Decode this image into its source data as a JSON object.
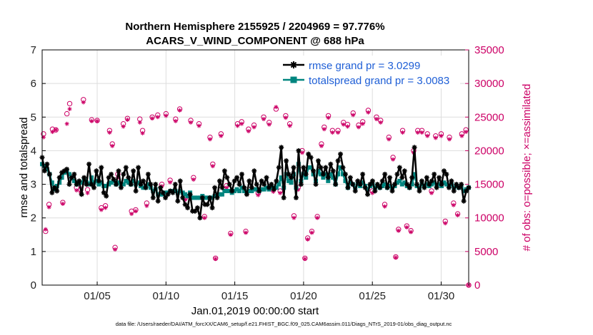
{
  "chart_data": {
    "type": "line",
    "title": "Northern Hemisphere 2155925 / 2204969 = 97.776%",
    "subtitle": "ACARS_V_WIND_COMPONENT @ 688 hPa",
    "xlabel": "Jan.01,2019 00:00:00 start",
    "ylabel": "rmse and totalspread",
    "ylabel_right": "# of obs: o=possible; ×=assimilated",
    "x_ticks": [
      "01/05",
      "01/10",
      "01/15",
      "01/20",
      "01/25",
      "01/30"
    ],
    "x_tick_days": [
      5,
      10,
      15,
      20,
      25,
      30
    ],
    "xlim": [
      1,
      32
    ],
    "ylim": [
      0,
      7
    ],
    "y_ticks": [
      0,
      1,
      2,
      3,
      4,
      5,
      6,
      7
    ],
    "ylim_right": [
      0,
      35000
    ],
    "y_ticks_right": [
      0,
      5000,
      10000,
      15000,
      20000,
      25000,
      30000,
      35000
    ],
    "grid": true,
    "legend_position": "top-right",
    "footer": "data file: /Users/raeder/DAI/ATM_forcXX/CAM6_setup/f.e21.FHIST_BGC.f09_025.CAM6assim.011/Diags_NTrS_2019-01/obs_diag_output.nc",
    "colors": {
      "rmse": "#000000",
      "spread": "#00857f",
      "obs": "#cc0066",
      "legend_text": "#1f5fd6",
      "grid": "#dddddd"
    },
    "series": [
      {
        "name": "rmse grand pr = 3.0299",
        "role": "rmse",
        "values": [
          3.8,
          3.4,
          3.6,
          3.3,
          2.75,
          2.9,
          2.8,
          3.2,
          3.35,
          3.4,
          3.45,
          3.0,
          3.2,
          3.3,
          3.0,
          3.1,
          2.7,
          3.2,
          3.0,
          3.6,
          3.0,
          2.9,
          3.4,
          3.1,
          3.5,
          2.75,
          2.65,
          3.2,
          3.3,
          3.15,
          3.0,
          3.4,
          2.9,
          3.3,
          3.5,
          3.2,
          3.0,
          3.4,
          2.8,
          3.5,
          3.0,
          3.1,
          2.9,
          3.3,
          3.0,
          2.6,
          3.0,
          2.5,
          2.9,
          2.75,
          2.6,
          2.7,
          2.8,
          2.75,
          3.0,
          2.5,
          3.1,
          2.6,
          2.4,
          2.3,
          2.7,
          2.2,
          2.2,
          2.3,
          2.0,
          2.6,
          2.4,
          2.4,
          2.6,
          2.3,
          2.9,
          2.6,
          3.1,
          2.9,
          3.4,
          3.2,
          3.0,
          2.8,
          3.1,
          3.2,
          3.0,
          3.3,
          2.9,
          2.7,
          3.1,
          2.9,
          3.4,
          3.0,
          2.8,
          3.1,
          3.0,
          3.2,
          2.9,
          3.0,
          2.85,
          3.1,
          3.5,
          4.1,
          2.6,
          3.7,
          3.3,
          3.2,
          3.5,
          2.6,
          4.0,
          3.0,
          3.5,
          3.3,
          3.9,
          3.8,
          3.4,
          3.0,
          3.7,
          3.5,
          3.3,
          3.5,
          3.2,
          3.6,
          3.4,
          3.0,
          3.7,
          3.9,
          3.5,
          3.3,
          2.9,
          3.2,
          3.0,
          2.8,
          3.1,
          3.0,
          3.3,
          2.9,
          2.7,
          3.0,
          3.1,
          2.8,
          3.0,
          2.9,
          3.1,
          3.3,
          2.9,
          3.2,
          2.8,
          3.0,
          3.3,
          3.5,
          3.2,
          3.4,
          3.0,
          2.9,
          3.2,
          4.1,
          3.0,
          2.8,
          3.1,
          2.9,
          3.2,
          3.0,
          3.1,
          3.3,
          2.9,
          3.2,
          3.0,
          3.4,
          3.3,
          2.9,
          3.1,
          2.8,
          3.0,
          2.9,
          3.0,
          2.5,
          2.8,
          2.9
        ]
      },
      {
        "name": "totalspread grand pr = 3.0083",
        "role": "spread",
        "values": [
          3.6,
          3.55,
          3.45,
          3.3,
          3.05,
          2.85,
          2.95,
          3.05,
          3.2,
          3.35,
          3.4,
          3.3,
          3.2,
          3.1,
          3.0,
          3.05,
          3.05,
          3.15,
          3.05,
          3.0,
          3.2,
          3.05,
          3.1,
          3.0,
          3.05,
          2.95,
          2.95,
          3.0,
          3.05,
          3.1,
          3.0,
          3.05,
          3.0,
          3.0,
          3.1,
          3.05,
          3.0,
          3.1,
          3.0,
          3.05,
          2.95,
          2.9,
          2.9,
          3.0,
          2.9,
          2.8,
          2.85,
          2.7,
          2.7,
          2.7,
          2.75,
          2.75,
          2.8,
          2.8,
          2.8,
          2.75,
          2.8,
          2.75,
          2.7,
          2.65,
          2.75,
          2.6,
          2.6,
          2.6,
          2.6,
          2.65,
          2.6,
          2.6,
          2.6,
          2.6,
          2.65,
          2.65,
          2.7,
          2.7,
          2.8,
          2.8,
          2.8,
          2.75,
          2.8,
          2.85,
          2.8,
          2.9,
          2.8,
          2.75,
          2.8,
          2.8,
          2.85,
          2.85,
          2.8,
          2.85,
          2.85,
          2.9,
          2.85,
          2.9,
          2.9,
          2.9,
          3.0,
          3.2,
          2.9,
          3.3,
          3.1,
          3.05,
          3.3,
          2.9,
          3.6,
          3.1,
          3.3,
          3.2,
          3.5,
          3.5,
          3.3,
          3.1,
          3.4,
          3.3,
          3.2,
          3.3,
          3.1,
          3.3,
          3.2,
          3.0,
          3.3,
          3.5,
          3.3,
          3.1,
          2.9,
          3.05,
          3.0,
          2.9,
          3.0,
          2.95,
          3.05,
          2.95,
          2.85,
          2.95,
          3.0,
          2.9,
          2.95,
          2.9,
          2.95,
          3.0,
          2.9,
          2.95,
          2.9,
          2.95,
          3.05,
          3.1,
          3.0,
          3.05,
          2.95,
          2.9,
          3.0,
          3.3,
          2.95,
          2.9,
          3.0,
          2.95,
          3.0,
          2.95,
          3.0,
          3.05,
          2.95,
          3.0,
          2.95,
          3.05,
          3.0,
          2.95,
          3.0,
          2.9,
          2.95,
          2.9,
          2.95,
          2.8,
          2.85,
          2.9
        ]
      }
    ],
    "obs_points": [
      {
        "day": 1.1,
        "possible": 22500,
        "assimilated": 22000
      },
      {
        "day": 1.25,
        "possible": 8000,
        "assimilated": 8300
      },
      {
        "day": 1.5,
        "possible": 12000,
        "assimilated": 11600
      },
      {
        "day": 1.75,
        "possible": 23200,
        "assimilated": 22800
      },
      {
        "day": 2.0,
        "possible": 23100,
        "assimilated": 23100
      },
      {
        "day": 2.5,
        "possible": 12300,
        "assimilated": 12100
      },
      {
        "day": 2.8,
        "possible": 25500,
        "assimilated": 24000
      },
      {
        "day": 3.0,
        "possible": 27000,
        "assimilated": 26200
      },
      {
        "day": 3.5,
        "possible": 14500,
        "assimilated": 14100
      },
      {
        "day": 3.8,
        "possible": 14200,
        "assimilated": 13800
      },
      {
        "day": 4.0,
        "possible": 27600,
        "assimilated": 27200
      },
      {
        "day": 4.3,
        "possible": 14200,
        "assimilated": 13700
      },
      {
        "day": 4.6,
        "possible": 24600,
        "assimilated": 24400
      },
      {
        "day": 5.0,
        "possible": 24500,
        "assimilated": 24400
      },
      {
        "day": 5.3,
        "possible": 11500,
        "assimilated": 11200
      },
      {
        "day": 5.6,
        "possible": 11800,
        "assimilated": 11500
      },
      {
        "day": 5.9,
        "possible": 23000,
        "assimilated": 22700
      },
      {
        "day": 6.1,
        "possible": 21000,
        "assimilated": 20700
      },
      {
        "day": 6.3,
        "possible": 5600,
        "assimilated": 5300
      },
      {
        "day": 6.5,
        "possible": 16500,
        "assimilated": 16000
      },
      {
        "day": 6.9,
        "possible": 24000,
        "assimilated": 23600
      },
      {
        "day": 7.2,
        "possible": 24800,
        "assimilated": 24600
      },
      {
        "day": 7.5,
        "possible": 11000,
        "assimilated": 10600
      },
      {
        "day": 7.8,
        "possible": 11200,
        "assimilated": 11000
      },
      {
        "day": 8.1,
        "possible": 24700,
        "assimilated": 24200
      },
      {
        "day": 8.3,
        "possible": 23000,
        "assimilated": 22600
      },
      {
        "day": 8.6,
        "possible": 12200,
        "assimilated": 11800
      },
      {
        "day": 9.0,
        "possible": 25000,
        "assimilated": 24800
      },
      {
        "day": 9.4,
        "possible": 25300,
        "assimilated": 25000
      },
      {
        "day": 9.7,
        "possible": 15000,
        "assimilated": 14700
      },
      {
        "day": 10.0,
        "possible": 25500,
        "assimilated": 25200
      },
      {
        "day": 10.3,
        "possible": 15600,
        "assimilated": 15300
      },
      {
        "day": 10.7,
        "possible": 24700,
        "assimilated": 24400
      },
      {
        "day": 11.0,
        "possible": 26200,
        "assimilated": 26000
      },
      {
        "day": 11.4,
        "possible": 13000,
        "assimilated": 12700
      },
      {
        "day": 11.8,
        "possible": 24500,
        "assimilated": 24200
      },
      {
        "day": 12.0,
        "possible": 16000,
        "assimilated": 15700
      },
      {
        "day": 12.4,
        "possible": 24000,
        "assimilated": 23700
      },
      {
        "day": 12.8,
        "possible": 10200,
        "assimilated": 10000
      },
      {
        "day": 13.2,
        "possible": 22000,
        "assimilated": 21700
      },
      {
        "day": 13.4,
        "possible": 18000,
        "assimilated": 17700
      },
      {
        "day": 13.6,
        "possible": 4000,
        "assimilated": 3900
      },
      {
        "day": 14.0,
        "possible": 22500,
        "assimilated": 22200
      },
      {
        "day": 14.4,
        "possible": 14800,
        "assimilated": 14500
      },
      {
        "day": 14.7,
        "possible": 7700,
        "assimilated": 7500
      },
      {
        "day": 15.2,
        "possible": 24000,
        "assimilated": 23700
      },
      {
        "day": 15.5,
        "possible": 24300,
        "assimilated": 24000
      },
      {
        "day": 15.8,
        "possible": 8000,
        "assimilated": 7800
      },
      {
        "day": 16.0,
        "possible": 23200,
        "assimilated": 22900
      },
      {
        "day": 16.4,
        "possible": 23800,
        "assimilated": 23500
      },
      {
        "day": 16.7,
        "possible": 13700,
        "assimilated": 13400
      },
      {
        "day": 17.1,
        "possible": 25000,
        "assimilated": 24700
      },
      {
        "day": 17.5,
        "possible": 24200,
        "assimilated": 23900
      },
      {
        "day": 17.8,
        "possible": 14200,
        "assimilated": 13900
      },
      {
        "day": 18.0,
        "possible": 26200,
        "assimilated": 26500
      },
      {
        "day": 18.3,
        "possible": 14000,
        "assimilated": 13700
      },
      {
        "day": 18.7,
        "possible": 25200,
        "assimilated": 24900
      },
      {
        "day": 19.0,
        "possible": 24000,
        "assimilated": 23700
      },
      {
        "day": 19.3,
        "possible": 10300,
        "assimilated": 10000
      },
      {
        "day": 19.6,
        "possible": 14500,
        "assimilated": 14200
      },
      {
        "day": 19.9,
        "possible": 20000,
        "assimilated": 19700
      },
      {
        "day": 20.1,
        "possible": 4000,
        "assimilated": 3900
      },
      {
        "day": 20.3,
        "possible": 7000,
        "assimilated": 6800
      },
      {
        "day": 20.6,
        "possible": 8000,
        "assimilated": 7800
      },
      {
        "day": 21.0,
        "possible": 10200,
        "assimilated": 10000
      },
      {
        "day": 21.3,
        "possible": 21000,
        "assimilated": 20700
      },
      {
        "day": 21.5,
        "possible": 23500,
        "assimilated": 23200
      },
      {
        "day": 21.8,
        "possible": 25200,
        "assimilated": 24900
      },
      {
        "day": 22.1,
        "possible": 23000,
        "assimilated": 22700
      },
      {
        "day": 22.5,
        "possible": 23000,
        "assimilated": 22700
      },
      {
        "day": 22.9,
        "possible": 24200,
        "assimilated": 23900
      },
      {
        "day": 23.2,
        "possible": 23900,
        "assimilated": 23600
      },
      {
        "day": 23.6,
        "possible": 25600,
        "assimilated": 25300
      },
      {
        "day": 24.0,
        "possible": 23800,
        "assimilated": 23500
      },
      {
        "day": 24.3,
        "possible": 24300,
        "assimilated": 24000
      },
      {
        "day": 24.7,
        "possible": 26000,
        "assimilated": 25700
      },
      {
        "day": 25.0,
        "possible": 14000,
        "assimilated": 13700
      },
      {
        "day": 25.3,
        "possible": 25000,
        "assimilated": 24700
      },
      {
        "day": 25.6,
        "possible": 24500,
        "assimilated": 24200
      },
      {
        "day": 25.9,
        "possible": 12000,
        "assimilated": 11700
      },
      {
        "day": 26.2,
        "possible": 22000,
        "assimilated": 21700
      },
      {
        "day": 26.5,
        "possible": 19000,
        "assimilated": 18700
      },
      {
        "day": 26.7,
        "possible": 4200,
        "assimilated": 4100
      },
      {
        "day": 26.9,
        "possible": 8300,
        "assimilated": 8100
      },
      {
        "day": 27.2,
        "possible": 23000,
        "assimilated": 22700
      },
      {
        "day": 27.5,
        "possible": 8800,
        "assimilated": 8600
      },
      {
        "day": 27.8,
        "possible": 8100,
        "assimilated": 7900
      },
      {
        "day": 28.0,
        "possible": 20000,
        "assimilated": 19700
      },
      {
        "day": 28.3,
        "possible": 23000,
        "assimilated": 22700
      },
      {
        "day": 28.6,
        "possible": 23000,
        "assimilated": 22700
      },
      {
        "day": 29.0,
        "possible": 22500,
        "assimilated": 22200
      },
      {
        "day": 29.3,
        "possible": 14000,
        "assimilated": 13700
      },
      {
        "day": 29.6,
        "possible": 22200,
        "assimilated": 21900
      },
      {
        "day": 30.0,
        "possible": 22500,
        "assimilated": 22200
      },
      {
        "day": 30.3,
        "possible": 9500,
        "assimilated": 9200
      },
      {
        "day": 30.6,
        "possible": 22000,
        "assimilated": 21700
      },
      {
        "day": 30.9,
        "possible": 12200,
        "assimilated": 11900
      },
      {
        "day": 31.2,
        "possible": 10600,
        "assimilated": 10400
      },
      {
        "day": 31.5,
        "possible": 22500,
        "assimilated": 22200
      },
      {
        "day": 31.8,
        "possible": 23100,
        "assimilated": 22800
      },
      {
        "day": 32.0,
        "possible": 0,
        "assimilated": 0
      }
    ]
  }
}
